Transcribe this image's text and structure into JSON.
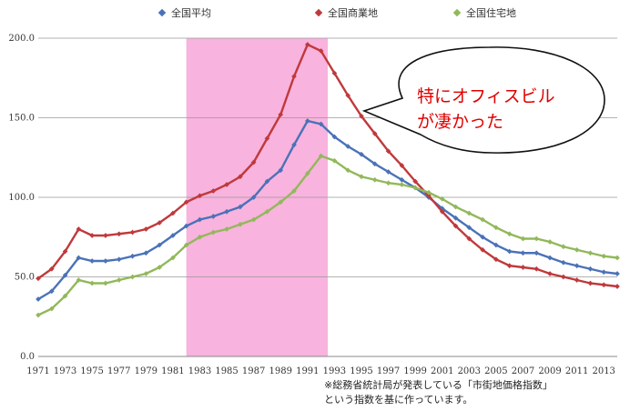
{
  "chart_data": {
    "type": "line",
    "x": [
      1971,
      1972,
      1973,
      1974,
      1975,
      1976,
      1977,
      1978,
      1979,
      1980,
      1981,
      1982,
      1983,
      1984,
      1985,
      1986,
      1987,
      1988,
      1989,
      1990,
      1991,
      1992,
      1993,
      1994,
      1995,
      1996,
      1997,
      1998,
      1999,
      2000,
      2001,
      2002,
      2003,
      2004,
      2005,
      2006,
      2007,
      2008,
      2009,
      2010,
      2011,
      2012,
      2013,
      2014
    ],
    "xticks": [
      "1971",
      "1973",
      "1975",
      "1977",
      "1979",
      "1981",
      "1983",
      "1985",
      "1987",
      "1989",
      "1991",
      "1993",
      "1995",
      "1997",
      "1999",
      "2001",
      "2003",
      "2005",
      "2007",
      "2009",
      "2011",
      "2013"
    ],
    "yticks": [
      "0.0",
      "50.0",
      "100.0",
      "150.0",
      "200.0"
    ],
    "ylim": [
      0,
      200
    ],
    "xlim": [
      1971,
      2014
    ],
    "grid": true,
    "legend_position": "top",
    "series": [
      {
        "name": "全国平均",
        "color": "#4a72b8",
        "values": [
          36,
          41,
          51,
          62,
          60,
          60,
          61,
          63,
          65,
          70,
          76,
          82,
          86,
          88,
          91,
          94,
          100,
          110,
          117,
          133,
          148,
          146,
          138,
          132,
          127,
          121,
          116,
          111,
          106,
          100,
          93,
          87,
          81,
          75,
          70,
          66,
          65,
          65,
          62,
          59,
          57,
          55,
          53,
          52
        ]
      },
      {
        "name": "全国商業地",
        "color": "#c0393b",
        "values": [
          49,
          55,
          66,
          80,
          76,
          76,
          77,
          78,
          80,
          84,
          90,
          97,
          101,
          104,
          108,
          113,
          122,
          137,
          152,
          176,
          196,
          192,
          178,
          164,
          151,
          140,
          129,
          120,
          110,
          101,
          91,
          82,
          74,
          67,
          61,
          57,
          56,
          55,
          52,
          50,
          48,
          46,
          45,
          44
        ]
      },
      {
        "name": "全国住宅地",
        "color": "#92b85a",
        "values": [
          26,
          30,
          38,
          48,
          46,
          46,
          48,
          50,
          52,
          56,
          62,
          70,
          75,
          78,
          80,
          83,
          86,
          91,
          97,
          104,
          115,
          126,
          123,
          117,
          113,
          111,
          109,
          108,
          106,
          103,
          99,
          94,
          90,
          86,
          81,
          77,
          74,
          74,
          72,
          69,
          67,
          65,
          63,
          62
        ]
      }
    ],
    "highlight_range": [
      1982,
      1992.5
    ],
    "highlight_color": "#f7a6d8",
    "annotation": {
      "line1": "特にオフィスビル",
      "line2": "が凄かった"
    }
  },
  "footnote": {
    "line1": "※総務省統計局が発表している「市街地価格指数」",
    "line2": "という指数を基に作っています。"
  }
}
